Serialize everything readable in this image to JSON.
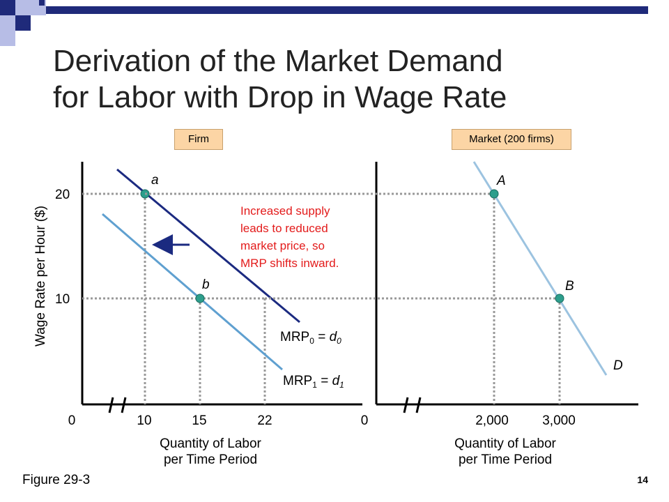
{
  "title_lines": [
    "Derivation of the Market Demand",
    "for Labor with Drop in Wage Rate"
  ],
  "footer": {
    "figure": "Figure 29-3",
    "page": "14"
  },
  "colors": {
    "mrp0": "#1b2a80",
    "mrp1": "#5fa0d0",
    "market": "#9cc3e0",
    "note": "#e31b1b",
    "point": "#2d9e8c",
    "badge": "#fcd5a5"
  },
  "chart_data": [
    {
      "type": "line",
      "badge": "Firm",
      "ylabel": "Wage Rate per Hour ($)",
      "xlabel_lines": [
        "Quantity of Labor",
        "per Time Period"
      ],
      "y_ticks": [
        "20",
        "10"
      ],
      "x_ticks": [
        "0",
        "10",
        "15",
        "22"
      ],
      "axis_break": true,
      "series": [
        {
          "name": "MRP₀ = d₀",
          "sub": "0",
          "points": [
            {
              "x": 10,
              "y": 20,
              "label": "a"
            },
            {
              "x": 22,
              "y": 10
            }
          ]
        },
        {
          "name": "MRP₁ = d₁",
          "sub": "1",
          "points": [
            {
              "x": 15,
              "y": 10,
              "label": "b"
            }
          ]
        }
      ],
      "labels": {
        "mrp0": {
          "base": "MRP",
          "sub": "0",
          "eq": " = ",
          "dvar": "d",
          "dsub": "0"
        },
        "mrp1": {
          "base": "MRP",
          "sub": "1",
          "eq": " = ",
          "dvar": "d",
          "dsub": "1"
        }
      },
      "annotation": [
        "Increased supply",
        "leads to reduced",
        "market price, so",
        "MRP shifts inward."
      ],
      "shift_arrow": "left"
    },
    {
      "type": "line",
      "badge": "Market (200 firms)",
      "xlabel_lines": [
        "Quantity of Labor",
        "per Time Period"
      ],
      "x_ticks": [
        "0",
        "2,000",
        "3,000"
      ],
      "axis_break": true,
      "series": [
        {
          "name": "D",
          "points": [
            {
              "x": 2000,
              "y": 20,
              "label": "A"
            },
            {
              "x": 3000,
              "y": 10,
              "label": "B"
            }
          ]
        }
      ]
    }
  ]
}
